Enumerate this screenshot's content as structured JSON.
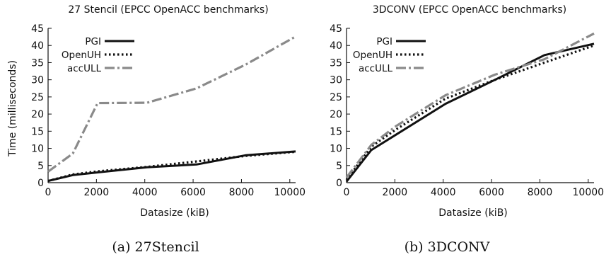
{
  "chart_data": [
    {
      "type": "line",
      "title": "27 Stencil (EPCC OpenACC benchmarks)",
      "caption": "(a) 27Stencil",
      "xlabel": "Datasize (kiB)",
      "ylabel": "Time (milliseconds)",
      "xlim": [
        0,
        10240
      ],
      "ylim": [
        0,
        45
      ],
      "xticks": [
        0,
        2000,
        4000,
        6000,
        8000,
        10000
      ],
      "yticks": [
        0,
        5,
        10,
        15,
        20,
        25,
        30,
        35,
        40,
        45
      ],
      "legend_position": "top-left",
      "grid": false,
      "series": [
        {
          "name": "PGI",
          "color": "#111111",
          "style": "solid",
          "x": [
            0,
            1024,
            2048,
            4096,
            6144,
            8192,
            10240
          ],
          "y": [
            0.5,
            2.2,
            3.0,
            4.5,
            5.3,
            8.0,
            9.1
          ]
        },
        {
          "name": "OpenUH",
          "color": "#111111",
          "style": "dotted",
          "x": [
            0,
            1024,
            2048,
            4096,
            6144,
            8192,
            10240
          ],
          "y": [
            0.5,
            2.4,
            3.3,
            4.6,
            6.2,
            7.8,
            9.0
          ]
        },
        {
          "name": "accULL",
          "color": "#8a8a8a",
          "style": "dashdot",
          "x": [
            0,
            1024,
            2048,
            4096,
            6144,
            8192,
            10240
          ],
          "y": [
            3.2,
            8.5,
            23.2,
            23.3,
            27.5,
            34.5,
            42.6
          ]
        }
      ]
    },
    {
      "type": "line",
      "title": "3DCONV (EPCC OpenACC benchmarks)",
      "caption": "(b) 3DCONV",
      "xlabel": "Datasize (kiB)",
      "ylabel": "",
      "xlim": [
        0,
        10240
      ],
      "ylim": [
        0,
        45
      ],
      "xticks": [
        0,
        2000,
        4000,
        6000,
        8000,
        10000
      ],
      "yticks": [
        0,
        5,
        10,
        15,
        20,
        25,
        30,
        35,
        40,
        45
      ],
      "legend_position": "top-left",
      "grid": false,
      "series": [
        {
          "name": "PGI",
          "color": "#111111",
          "style": "solid",
          "x": [
            0,
            1024,
            2048,
            4096,
            6144,
            8192,
            10240
          ],
          "y": [
            0.3,
            9.5,
            14.0,
            23.0,
            30.0,
            37.2,
            40.5
          ]
        },
        {
          "name": "OpenUH",
          "color": "#111111",
          "style": "dotted",
          "x": [
            0,
            1024,
            2048,
            4096,
            6144,
            8192,
            10240
          ],
          "y": [
            0.8,
            10.5,
            15.5,
            24.5,
            30.0,
            35.0,
            40.0
          ]
        },
        {
          "name": "accULL",
          "color": "#8a8a8a",
          "style": "dashdot",
          "x": [
            0,
            1024,
            2048,
            4096,
            6144,
            8192,
            10240
          ],
          "y": [
            1.5,
            11.0,
            16.5,
            25.5,
            31.5,
            36.0,
            43.5
          ]
        }
      ]
    }
  ]
}
